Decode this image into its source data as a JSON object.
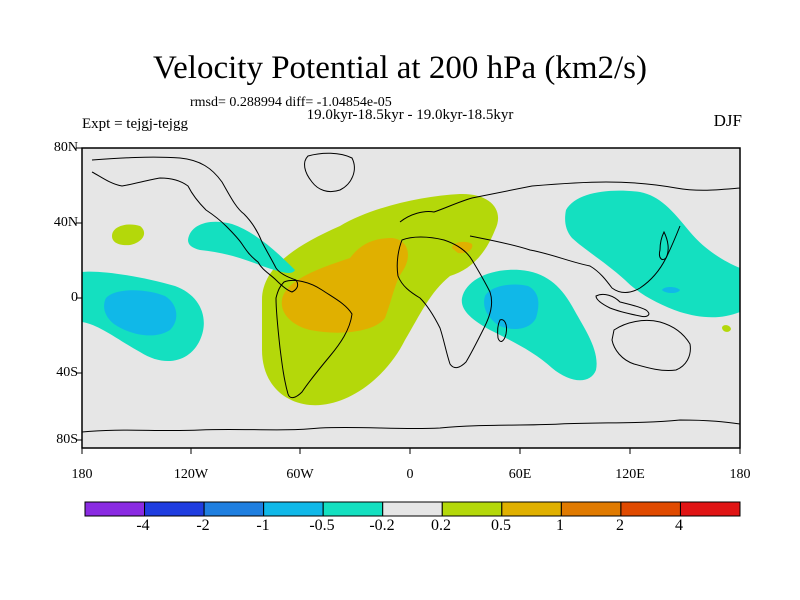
{
  "title": "Velocity Potential at 200 hPa (km2/s)",
  "stats": "rmsd= 0.288994 diff= -1.04854e-05",
  "subtitle": "19.0kyr-18.5kyr - 19.0kyr-18.5kyr",
  "expt": "Expt = tejgj-tejgg",
  "season": "DJF",
  "map": {
    "lat_labels": [
      "80N",
      "40N",
      "0",
      "40S",
      "80S"
    ],
    "lon_labels": [
      "180",
      "120W",
      "60W",
      "0",
      "60E",
      "120E",
      "180"
    ],
    "background_color": "#e6e6e6"
  },
  "colorbar": {
    "labels": [
      "-4",
      "-2",
      "-1",
      "-0.5",
      "-0.2",
      "0.2",
      "0.5",
      "1",
      "2",
      "4"
    ],
    "colors": [
      "#8a2be2",
      "#1f3de0",
      "#1f7fe0",
      "#10b8e8",
      "#14e0c0",
      "#e6e6e6",
      "#b4d80a",
      "#e0b000",
      "#e07a00",
      "#e04a00",
      "#e01414"
    ]
  }
}
